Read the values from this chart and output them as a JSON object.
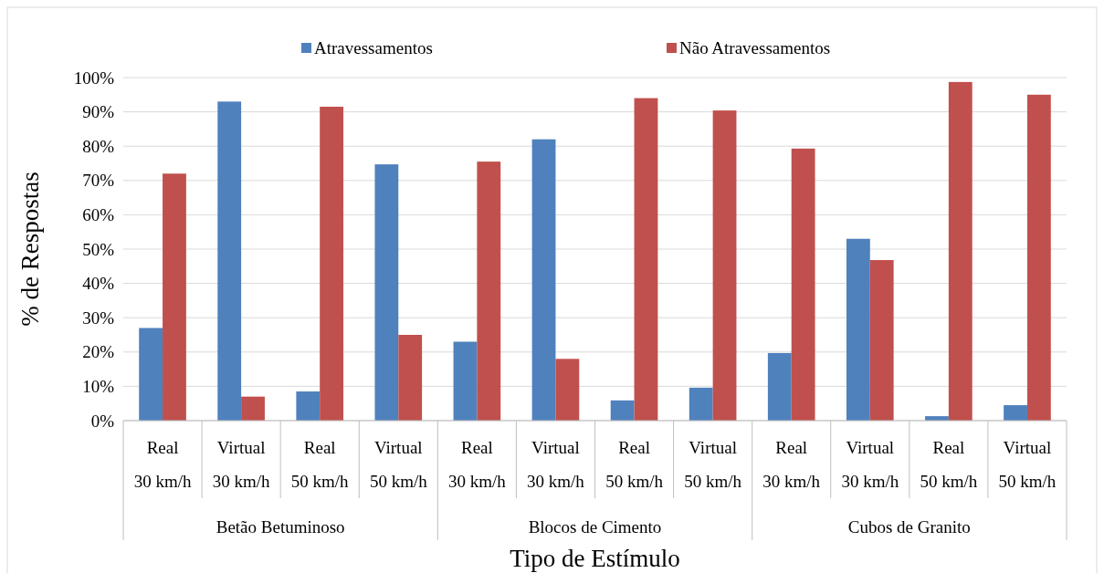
{
  "chart_data": {
    "type": "bar",
    "xlabel": "Tipo de Estímulo",
    "ylabel": "% de Respostas",
    "categories": [
      "Real\n30 km/h",
      "Virtual\n30 km/h",
      "Real\n50 km/h",
      "Virtual\n50 km/h",
      "Real\n30 km/h",
      "Virtual\n30 km/h",
      "Real\n50 km/h",
      "Virtual\n50 km/h",
      "Real\n30 km/h",
      "Virtual\n30 km/h",
      "Real\n50 km/h",
      "Virtual\n50 km/h"
    ],
    "annotations": [
      "Betão Betuminoso",
      "Blocos de Cimento",
      "Cubos de Granito"
    ],
    "series": [
      {
        "name": "Atravessamentos",
        "color": "#4f81bd",
        "values": [
          27,
          93,
          8.5,
          74.7,
          23,
          82,
          5.9,
          9.6,
          19.7,
          53,
          1.3,
          4.5
        ]
      },
      {
        "name": "Não Atravessamentos",
        "color": "#c0504d",
        "values": [
          72,
          7,
          91.5,
          25,
          75.5,
          18,
          94,
          90.4,
          79.3,
          46.8,
          98.7,
          95
        ]
      }
    ],
    "ylim": [
      0,
      100
    ],
    "yticks": [
      {
        "value": 0,
        "label": "0%"
      },
      {
        "value": 10,
        "label": "10%"
      },
      {
        "value": 20,
        "label": "20%"
      },
      {
        "value": 30,
        "label": "30%"
      },
      {
        "value": 40,
        "label": "40%"
      },
      {
        "value": 50,
        "label": "50%"
      },
      {
        "value": 60,
        "label": "60%"
      },
      {
        "value": 70,
        "label": "70%"
      },
      {
        "value": 80,
        "label": "80%"
      },
      {
        "value": 90,
        "label": "90%"
      },
      {
        "value": 100,
        "label": "100%"
      }
    ],
    "grid": "y",
    "legend": "top"
  }
}
